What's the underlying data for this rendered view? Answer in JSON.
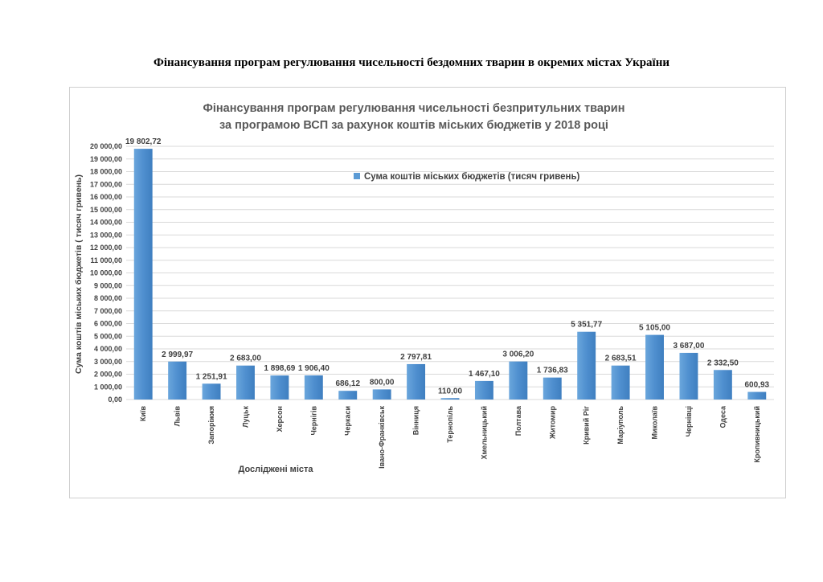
{
  "page": {
    "heading": "Фінансування програм регулювання чисельності бездомних тварин в окремих містах України"
  },
  "chart_data": {
    "type": "bar",
    "title_line1": "Фінансування програм регулювання чисельності безпритульних тварин",
    "title_line2": "за програмою ВСП за рахунок коштів міських бюджетів у 2018 році",
    "xlabel": "Досліджені міста",
    "ylabel": "Сума коштів міських бюджетів ( тисяч гривень)",
    "ylim": [
      0,
      20000
    ],
    "ytick_step": 1000,
    "ytick_labels": [
      "0,00",
      "1 000,00",
      "2 000,00",
      "3 000,00",
      "4 000,00",
      "5 000,00",
      "6 000,00",
      "7 000,00",
      "8 000,00",
      "9 000,00",
      "10 000,00",
      "11 000,00",
      "12 000,00",
      "13 000,00",
      "14 000,00",
      "15 000,00",
      "16 000,00",
      "17 000,00",
      "18 000,00",
      "19 000,00",
      "20 000,00"
    ],
    "grid": true,
    "legend_position": "top-right",
    "series": [
      {
        "name": "Сума коштів міських бюджетів (тисяч гривень)",
        "color": "#5b9bd5",
        "values": [
          19802.72,
          2999.97,
          1251.91,
          2683.0,
          1898.69,
          1906.4,
          686.12,
          800.0,
          2797.81,
          110.0,
          1467.1,
          3006.2,
          1736.83,
          5351.77,
          2683.51,
          5105.0,
          3687.0,
          2332.5,
          600.93
        ],
        "value_labels": [
          "19 802,72",
          "2 999,97",
          "1 251,91",
          "2 683,00",
          "1 898,69",
          "1 906,40",
          "686,12",
          "800,00",
          "2 797,81",
          "110,00",
          "1 467,10",
          "3 006,20",
          "1 736,83",
          "5 351,77",
          "2 683,51",
          "5 105,00",
          "3 687,00",
          "2 332,50",
          "600,93"
        ]
      }
    ],
    "categories": [
      "Київ",
      "Львів",
      "Запоріжжя",
      "Луцьк",
      "Херсон",
      "Чернігів",
      "Черкаси",
      "Івано-Франківськ",
      "Вінниця",
      "Тернопіль",
      "Хмельницький",
      "Полтава",
      "Житомир",
      "Кривий Ріг",
      "Маріуполь",
      "Миколаїв",
      "Чернівці",
      "Одеса",
      "Кропивницький"
    ]
  }
}
